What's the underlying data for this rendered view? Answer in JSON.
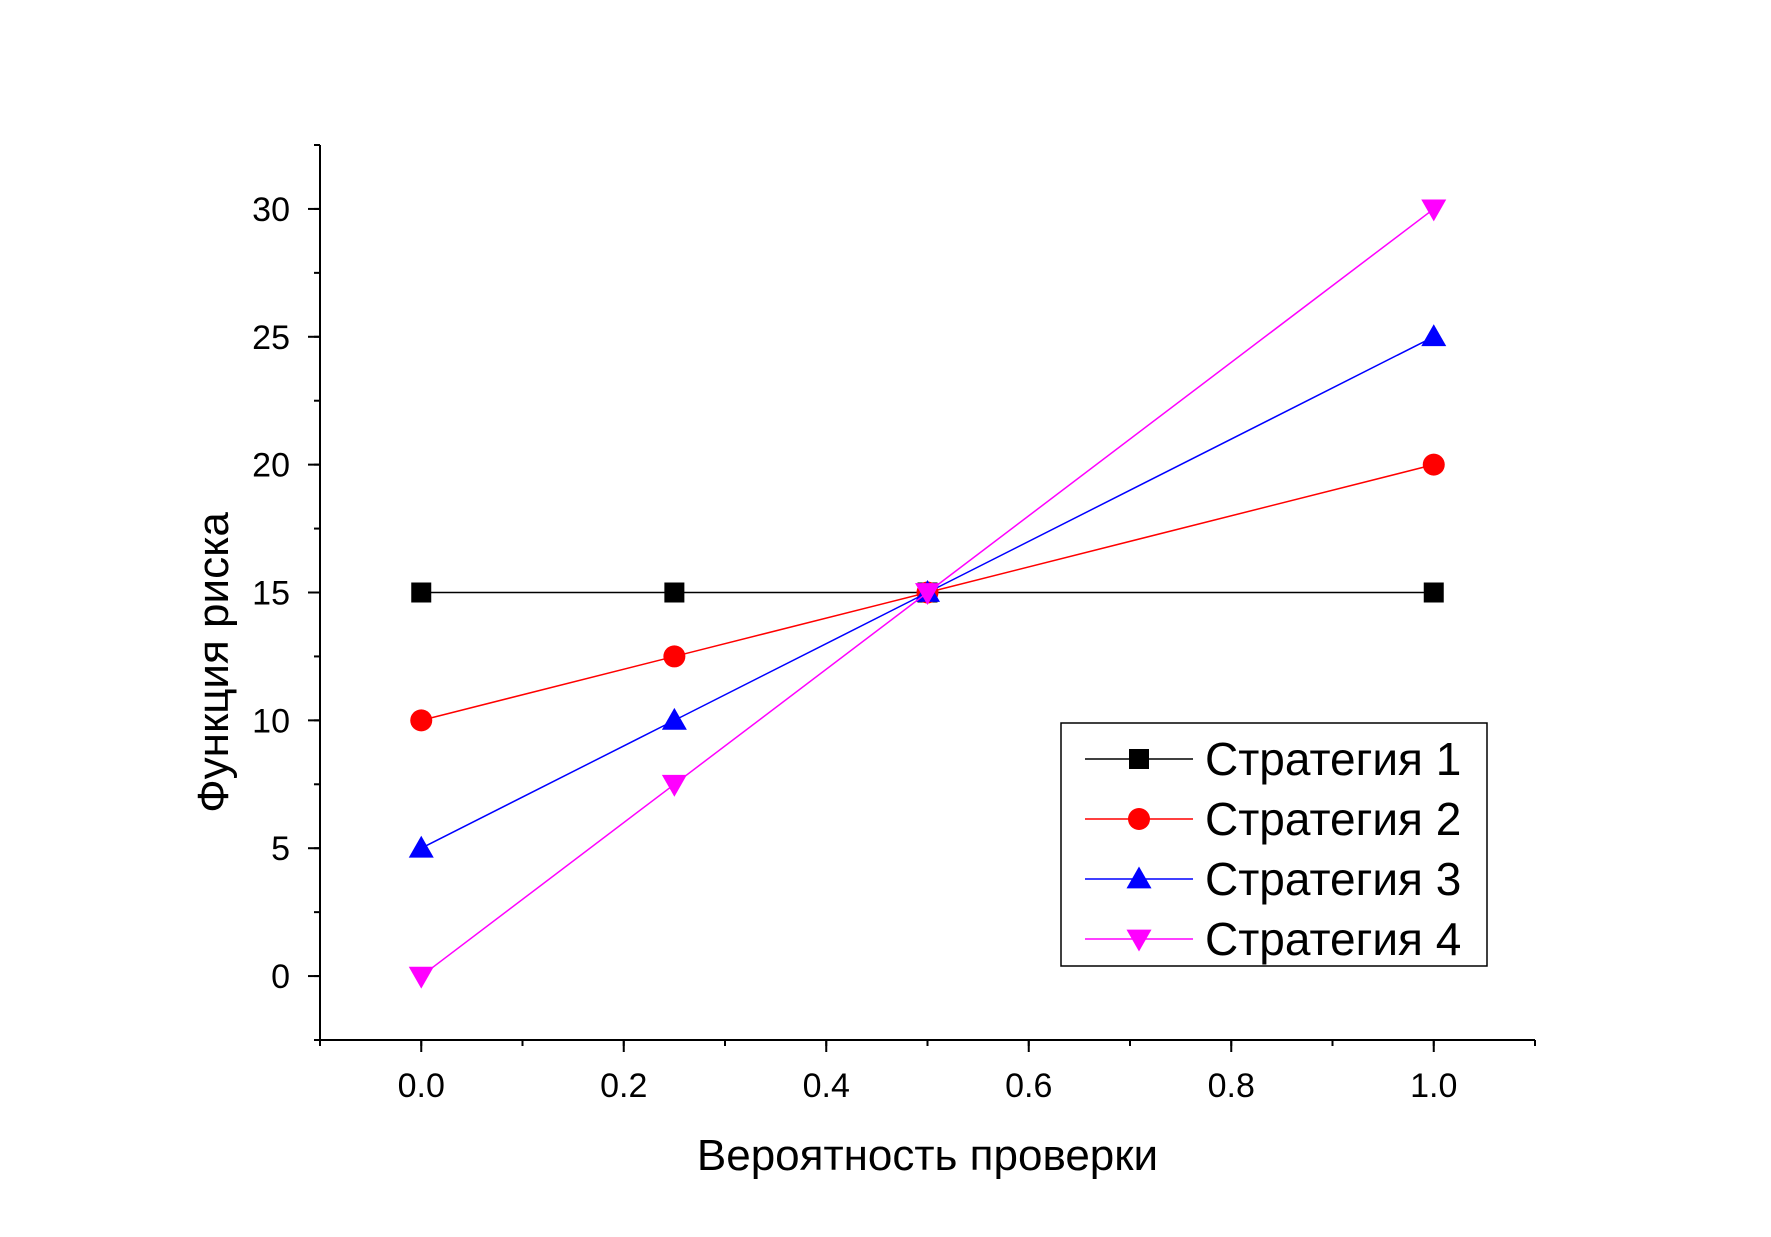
{
  "chart_data": {
    "type": "line",
    "title": "",
    "xlabel": "Вероятность проверки",
    "ylabel": "Функция риска",
    "xlim": [
      -0.1,
      1.1
    ],
    "ylim": [
      -2.5,
      32.5
    ],
    "x_ticks": [
      0.0,
      0.2,
      0.4,
      0.6,
      0.8,
      1.0
    ],
    "x_tick_labels": [
      "0.0",
      "0.2",
      "0.4",
      "0.6",
      "0.8",
      "1.0"
    ],
    "y_ticks": [
      0,
      5,
      10,
      15,
      20,
      25,
      30
    ],
    "y_tick_labels": [
      "0",
      "5",
      "10",
      "15",
      "20",
      "25",
      "30"
    ],
    "grid": false,
    "legend_position": "bottom-right",
    "x": [
      0.0,
      0.25,
      0.5,
      1.0
    ],
    "series": [
      {
        "name": "Стратегия 1",
        "values": [
          15,
          15,
          15,
          15
        ],
        "color": "#000000",
        "marker": "square"
      },
      {
        "name": "Стратегия 2",
        "values": [
          10,
          12.5,
          15,
          20
        ],
        "color": "#ff0000",
        "marker": "circle"
      },
      {
        "name": "Стратегия 3",
        "values": [
          5,
          10,
          15,
          25
        ],
        "color": "#0000ff",
        "marker": "triangle-up"
      },
      {
        "name": "Стратегия 4",
        "values": [
          0,
          7.5,
          15,
          30
        ],
        "color": "#ff00ff",
        "marker": "triangle-down"
      }
    ]
  }
}
